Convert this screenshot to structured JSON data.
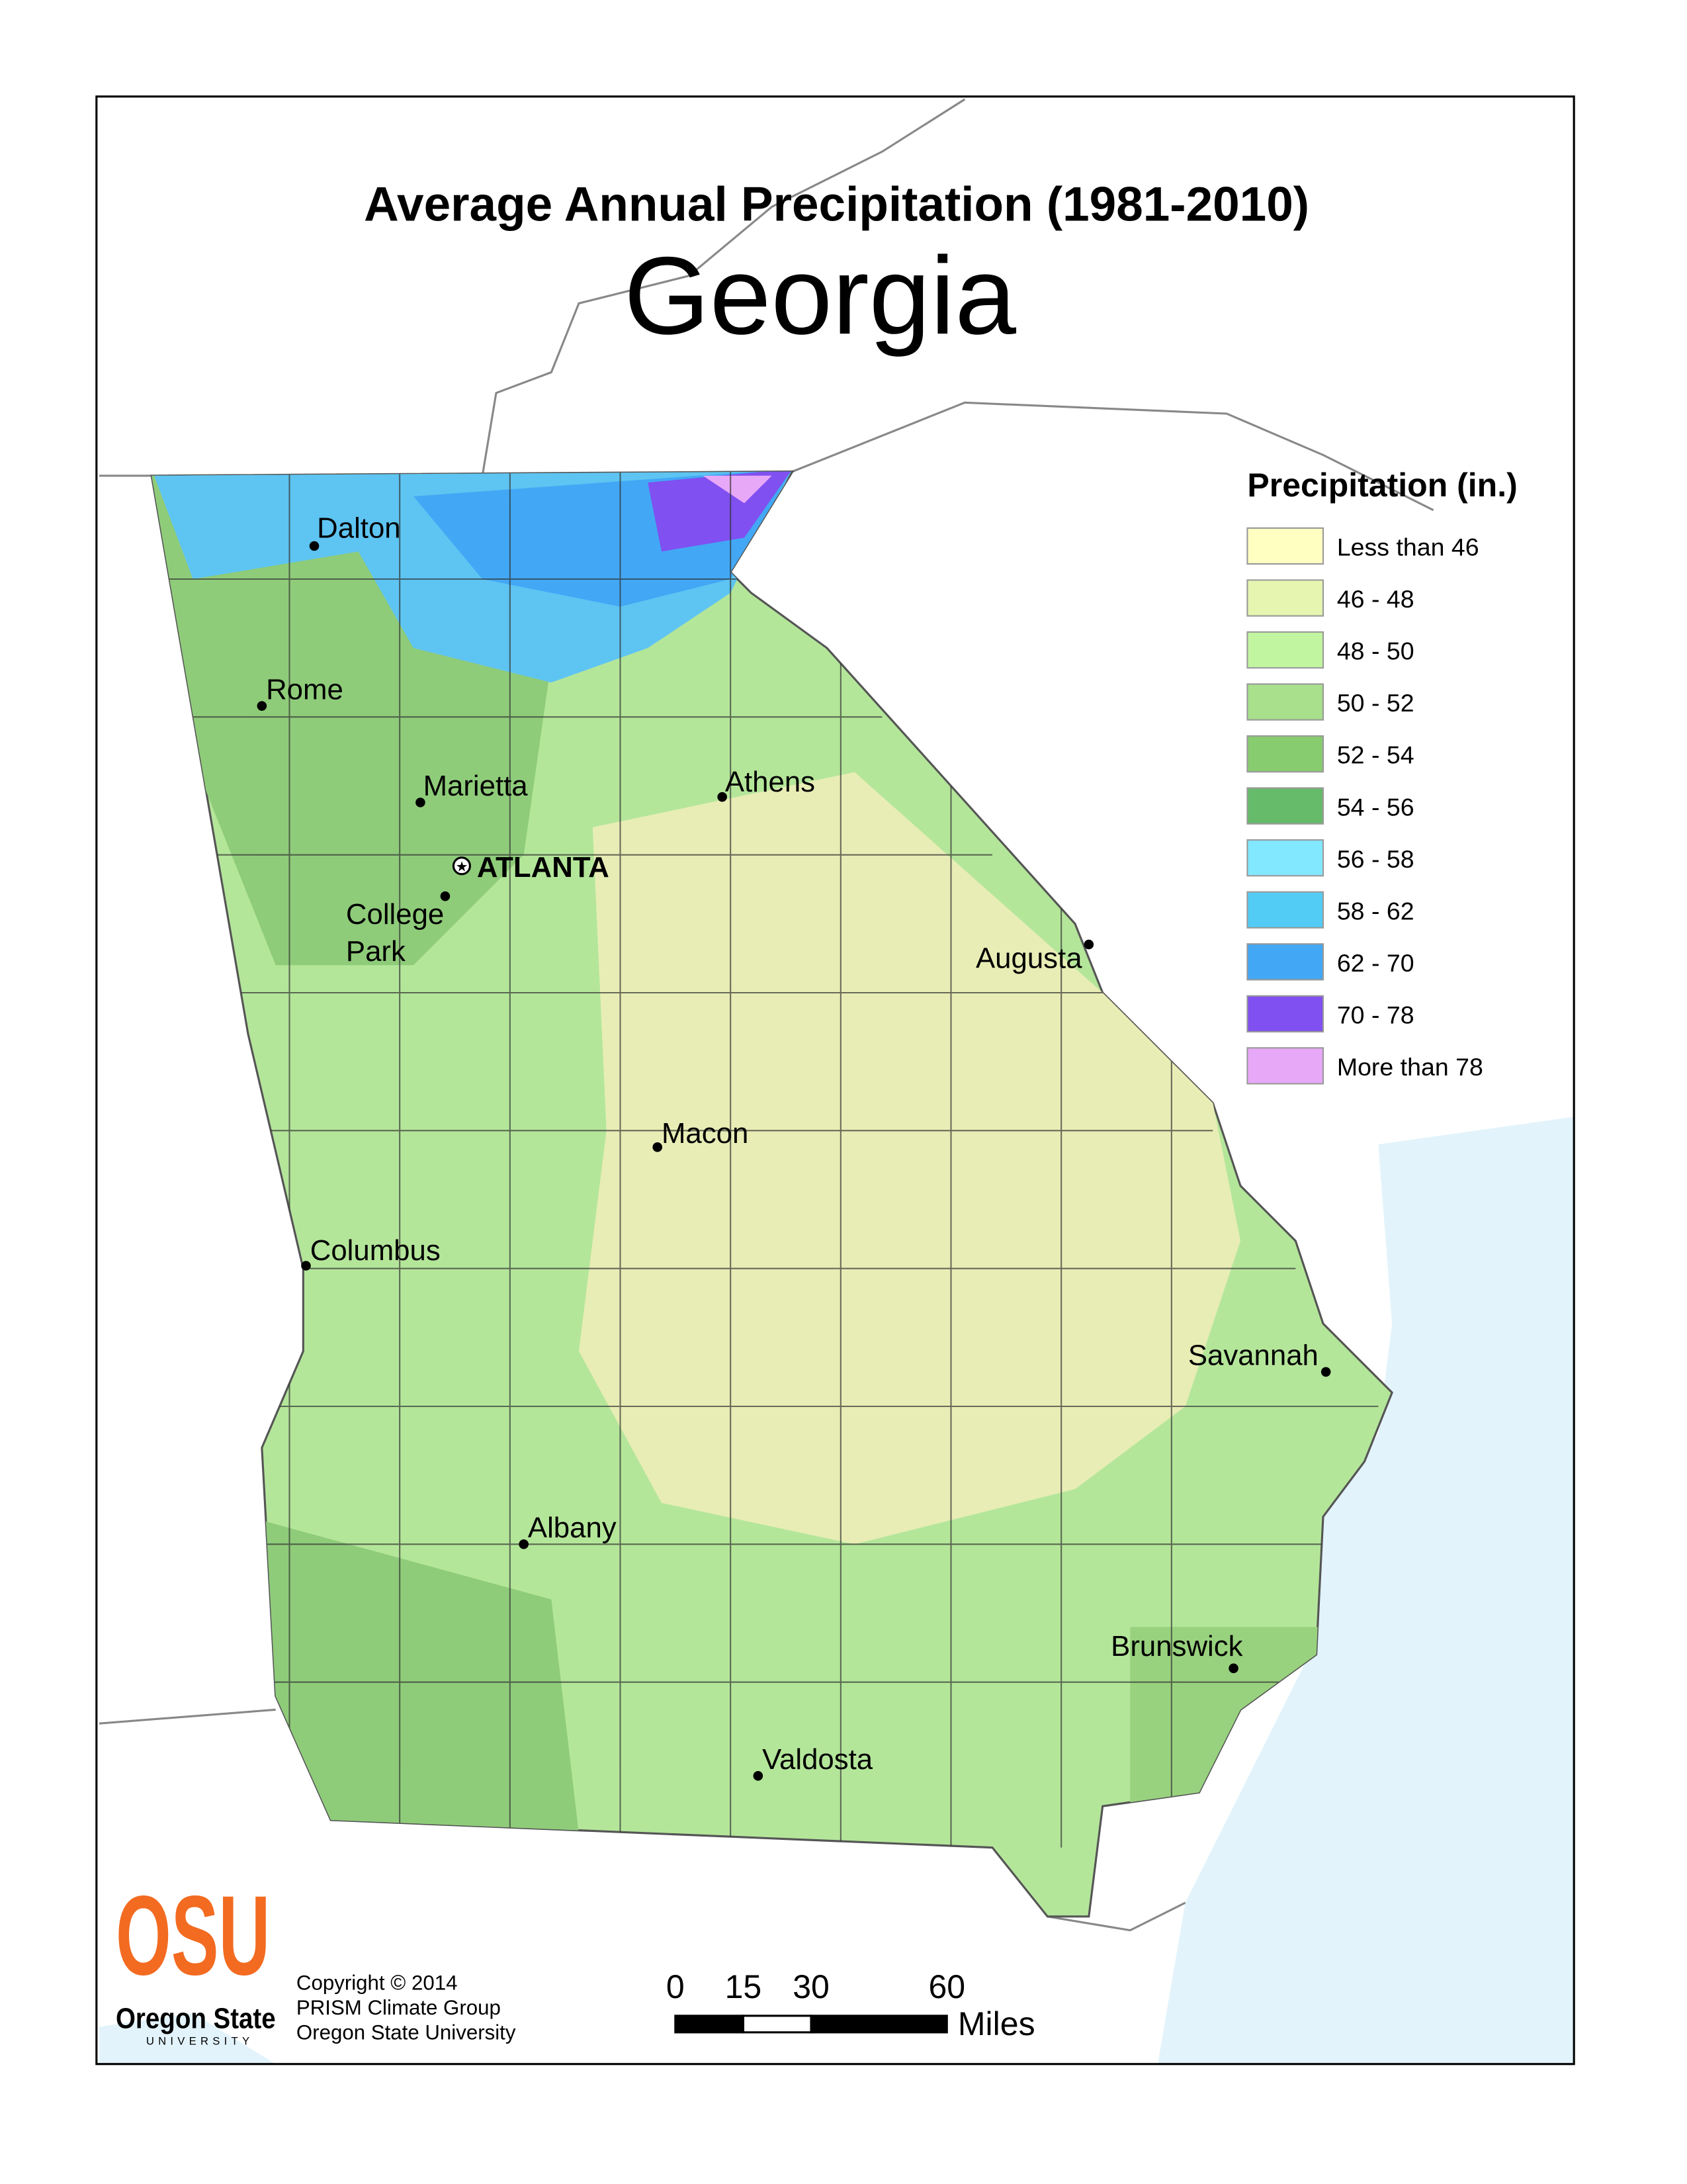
{
  "map": {
    "title": "Average Annual Precipitation (1981-2010)",
    "subtitle": "Georgia",
    "legend": {
      "title": "Precipitation (in.)",
      "items": [
        {
          "label": "Less than 46",
          "color": "#ffffc2"
        },
        {
          "label": "46 - 48",
          "color": "#e6f5b0"
        },
        {
          "label": "48 - 50",
          "color": "#c2f5a0"
        },
        {
          "label": "50 - 52",
          "color": "#a8e08c"
        },
        {
          "label": "52 - 54",
          "color": "#88cc70"
        },
        {
          "label": "54 - 56",
          "color": "#66bb6a"
        },
        {
          "label": "56 - 58",
          "color": "#82e8ff"
        },
        {
          "label": "58 - 62",
          "color": "#52ccf5"
        },
        {
          "label": "62 - 70",
          "color": "#42a8f5"
        },
        {
          "label": "70 - 78",
          "color": "#8050f0"
        },
        {
          "label": "More than 78",
          "color": "#e8a8f8"
        }
      ]
    },
    "cities": [
      {
        "lines": [
          "Dalton"
        ]
      },
      {
        "lines": [
          "Rome"
        ]
      },
      {
        "lines": [
          "Marietta"
        ]
      },
      {
        "lines": [
          "ATLANTA"
        ],
        "capital": true
      },
      {
        "lines": [
          "College",
          "Park"
        ]
      },
      {
        "lines": [
          "Athens"
        ]
      },
      {
        "lines": [
          "Augusta"
        ]
      },
      {
        "lines": [
          "Macon"
        ]
      },
      {
        "lines": [
          "Columbus"
        ]
      },
      {
        "lines": [
          "Savannah"
        ]
      },
      {
        "lines": [
          "Albany"
        ]
      },
      {
        "lines": [
          "Brunswick"
        ]
      },
      {
        "lines": [
          "Valdosta"
        ]
      }
    ],
    "scale_bar": {
      "ticks": [
        0,
        15,
        30,
        60
      ],
      "unit": "Miles"
    },
    "logo": {
      "mark": "OSU",
      "name": "Oregon State",
      "sub": "UNIVERSITY"
    },
    "credits": [
      "Copyright © 2014",
      "PRISM Climate Group",
      "Oregon State University"
    ]
  }
}
